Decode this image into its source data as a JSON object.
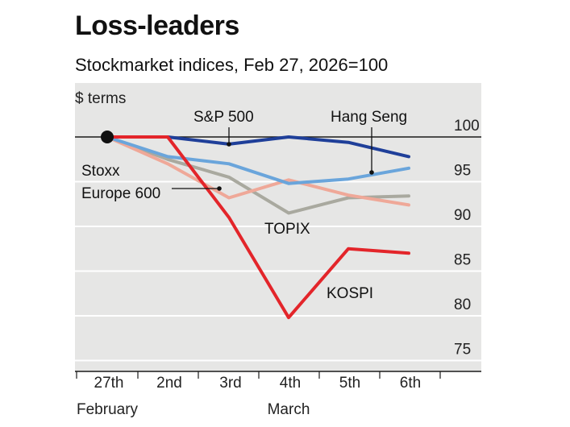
{
  "header": {
    "title": "Loss-leaders",
    "subtitle": "Stockmarket indices, Feb 27, 2026=100"
  },
  "colors": {
    "plot_bg": "#e6e6e5",
    "grid": "#ffffff",
    "sp500": "#1f3f99",
    "hang_seng": "#3f7dc0",
    "stoxx": "#6aa5db",
    "topix": "#a9a99f",
    "europe_peach": "#efa898",
    "kospi": "#e3252a",
    "baseline": "#1a1a1a",
    "text": "#111111"
  },
  "chart_data": {
    "type": "line",
    "title": "Loss-leaders",
    "subtitle": "Stockmarket indices, Feb 27, 2026=100",
    "ylabel": "$ terms",
    "ylim": [
      75,
      102
    ],
    "yticks": [
      100,
      95,
      90,
      85,
      80,
      75
    ],
    "grid": true,
    "x": [
      "27th",
      "2nd",
      "3rd",
      "4th",
      "5th",
      "6th"
    ],
    "x_groups": [
      {
        "label": "February",
        "index": 0
      },
      {
        "label": "March",
        "index": 3
      }
    ],
    "series": [
      {
        "name": "TOPIX",
        "color": "#a9a99f",
        "values": [
          100,
          97.5,
          95.5,
          91.5,
          93.2,
          93.4
        ]
      },
      {
        "name": "Stoxx Europe 600",
        "color": "#efa898",
        "values": [
          100,
          97,
          93.2,
          95.2,
          93.5,
          92.4
        ]
      },
      {
        "name": "Hang Seng",
        "color": "#6aa5db",
        "values": [
          100,
          97.8,
          97,
          94.8,
          95.3,
          96.5
        ]
      },
      {
        "name": "S&P 500",
        "color": "#1f3f99",
        "values": [
          100,
          100,
          99.2,
          100,
          99.4,
          97.8
        ]
      },
      {
        "name": "KOSPI",
        "color": "#e3252a",
        "values": [
          100,
          100,
          91,
          79.8,
          87.5,
          87
        ]
      }
    ],
    "labels": [
      {
        "text": "S&P 500"
      },
      {
        "text": "Hang Seng"
      },
      {
        "text": "Stoxx"
      },
      {
        "text": "Europe 600"
      },
      {
        "text": "TOPIX"
      },
      {
        "text": "KOSPI"
      }
    ]
  }
}
